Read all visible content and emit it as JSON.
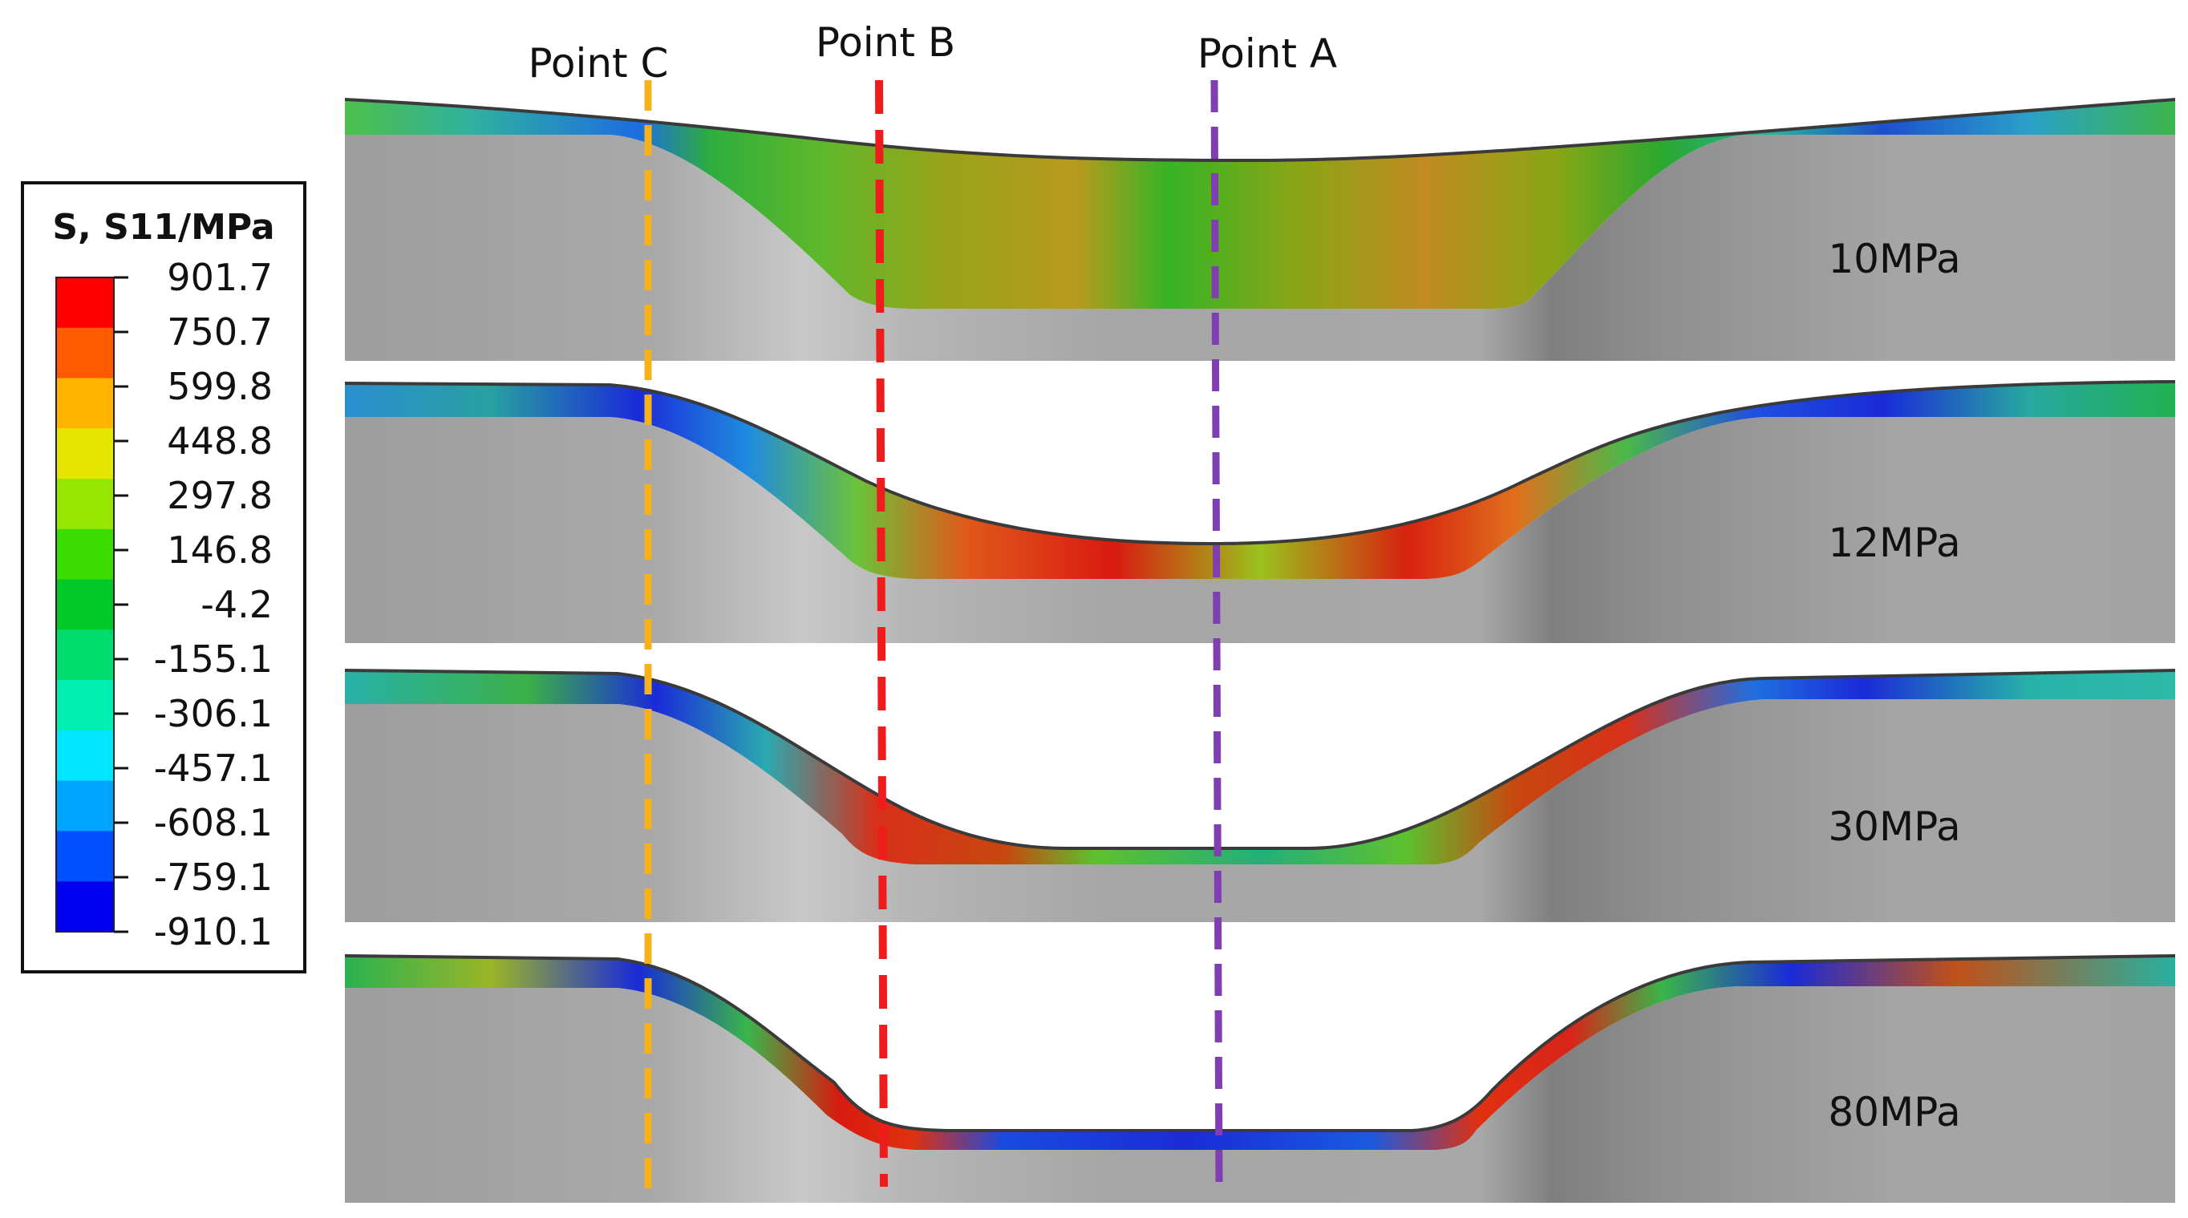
{
  "points": [
    {
      "id": "C",
      "label": "Point C",
      "color": "#F7B21A"
    },
    {
      "id": "B",
      "label": "Point B",
      "color": "#EE1C1C"
    },
    {
      "id": "A",
      "label": "Point A",
      "color": "#7F3FB3"
    }
  ],
  "panels": [
    {
      "pressure_label": "10MPa"
    },
    {
      "pressure_label": "12MPa"
    },
    {
      "pressure_label": "30MPa"
    },
    {
      "pressure_label": "80MPa"
    }
  ],
  "legend": {
    "title": "S, S11/MPa",
    "values": [
      "901.7",
      "750.7",
      "599.8",
      "448.8",
      "297.8",
      "146.8",
      "-4.2",
      "-155.1",
      "-306.1",
      "-457.1",
      "-608.1",
      "-759.1",
      "-910.1"
    ],
    "colors": [
      "#FF0000",
      "#FF5A00",
      "#FFB400",
      "#E6E600",
      "#96E600",
      "#3CDC00",
      "#00C828",
      "#00DC6E",
      "#00F0B4",
      "#00E6FF",
      "#00A5FF",
      "#0050FF",
      "#0000F0"
    ]
  }
}
